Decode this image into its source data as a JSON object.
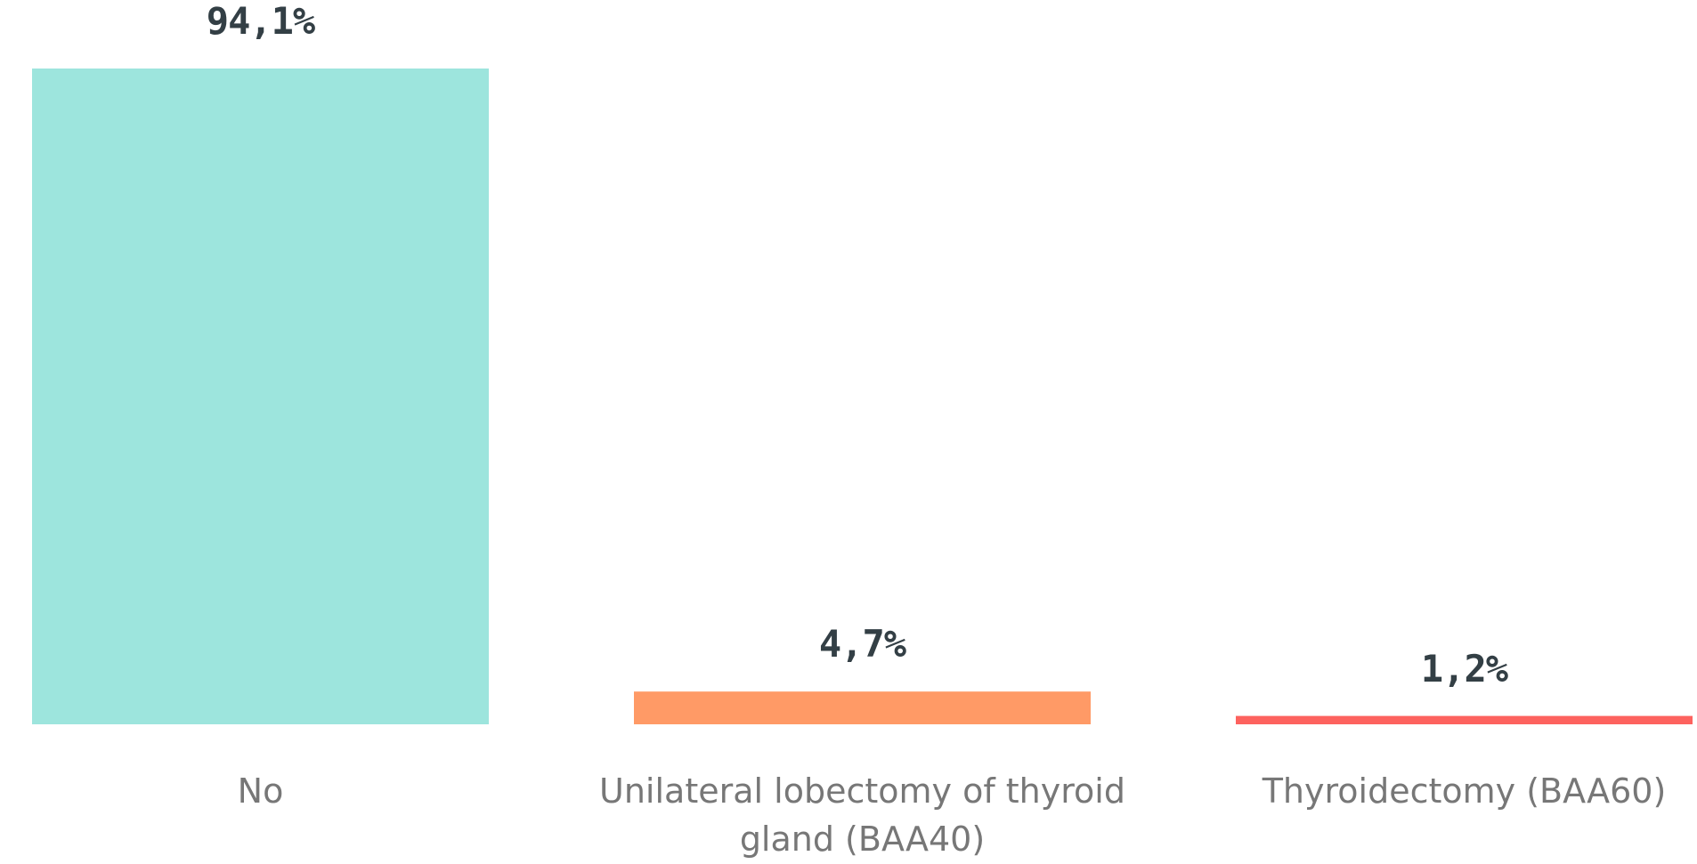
{
  "chart_data": {
    "type": "bar",
    "categories": [
      "No",
      "Unilateral lobectomy of thyroid gland (BAA40)",
      "Thyroidectomy (BAA60)"
    ],
    "values": [
      94.1,
      4.7,
      1.2
    ],
    "value_labels": [
      "94,1%",
      "4,7%",
      "1,2%"
    ],
    "colors": [
      "#9de5dd",
      "#ff9a66",
      "#fd625e"
    ]
  }
}
